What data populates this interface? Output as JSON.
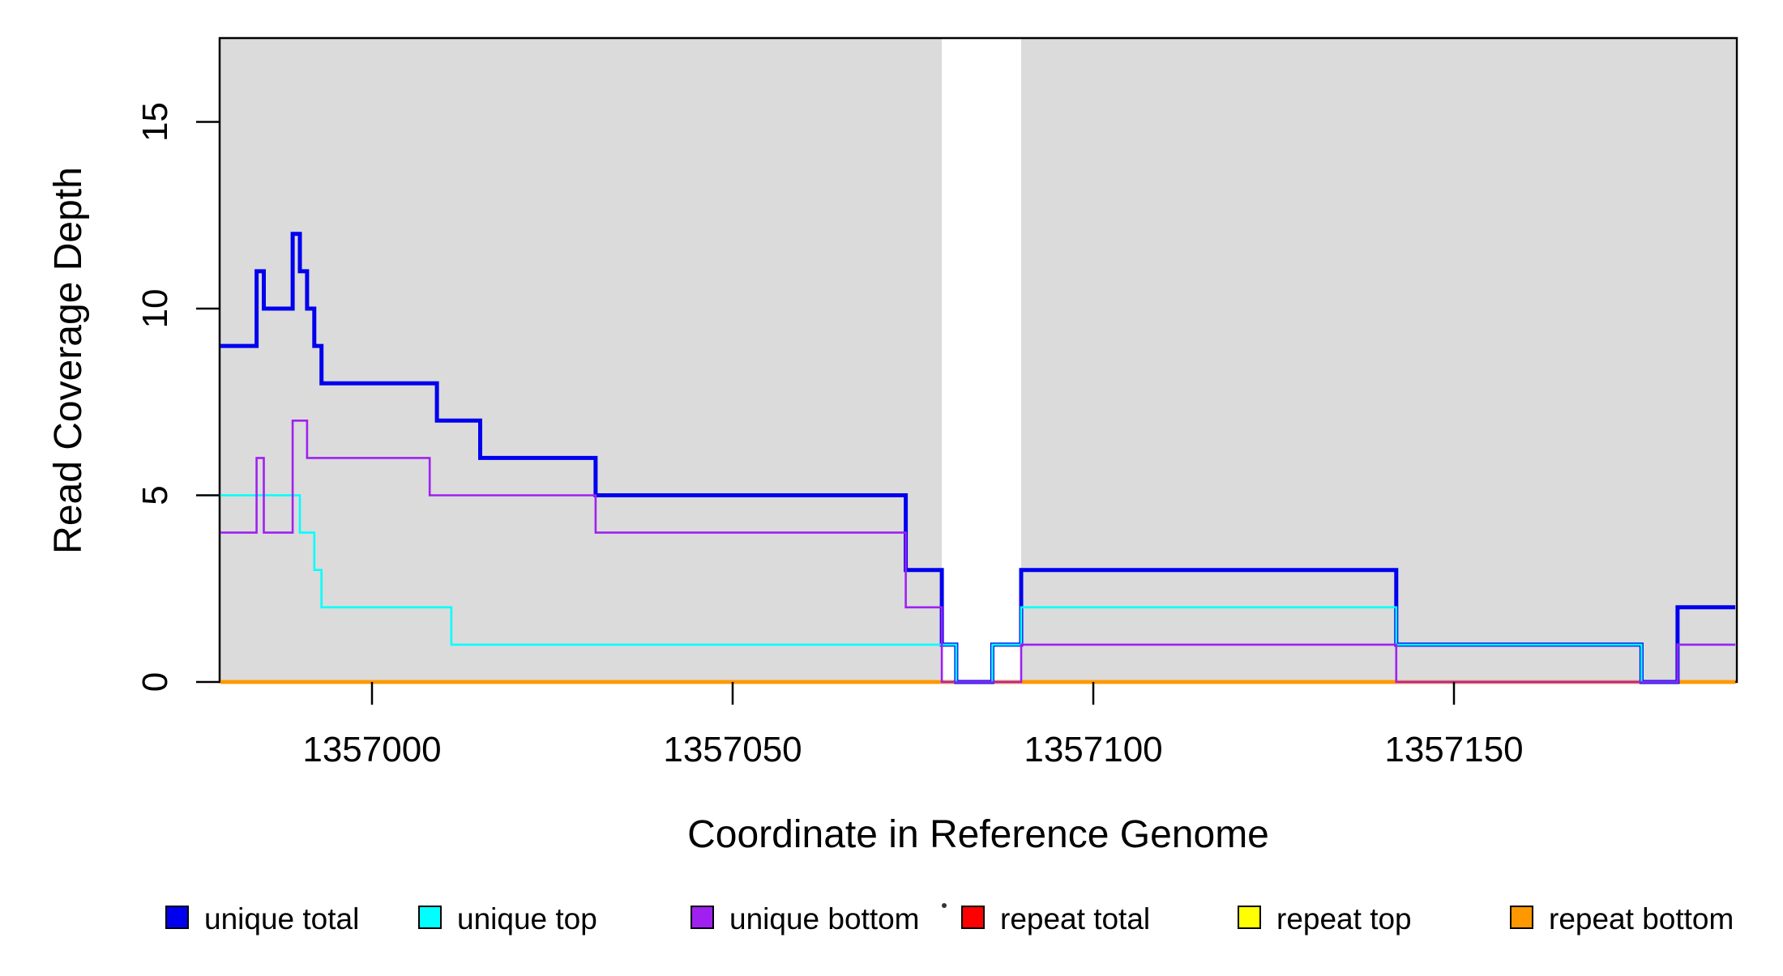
{
  "y_axis": {
    "label": "Read Coverage Depth",
    "ticks": [
      0,
      5,
      10,
      15
    ],
    "tick_labels": [
      "0",
      "5",
      "10",
      "15"
    ],
    "range": [
      0,
      17.2
    ]
  },
  "x_axis": {
    "label": "Coordinate in Reference Genome",
    "ticks": [
      1357000,
      1357050,
      1357100,
      1357150
    ],
    "tick_labels": [
      "1357000",
      "1357050",
      "1357100",
      "1357150"
    ],
    "range": [
      1356979,
      1357189
    ]
  },
  "legend": {
    "items": [
      {
        "label": "unique total",
        "color": "#0000EE"
      },
      {
        "label": "unique top",
        "color": "#00FFFF"
      },
      {
        "label": "unique bottom",
        "color": "#A020F0"
      },
      {
        "label": "repeat total",
        "color": "#FF0000"
      },
      {
        "label": "repeat top",
        "color": "#FFFF00"
      },
      {
        "label": "repeat bottom",
        "color": "#FF9800"
      }
    ]
  },
  "chart_data": {
    "type": "step-line",
    "title": "",
    "xlabel": "Coordinate in Reference Genome",
    "ylabel": "Read Coverage Depth",
    "xlim": [
      1356979,
      1357189
    ],
    "ylim": [
      0,
      17.2
    ],
    "grid": false,
    "legend_position": "bottom",
    "plot_background": "#ffffff",
    "shaded_regions": [
      {
        "name": "mappable-region-left",
        "x0": 1356979,
        "x1": 1357079,
        "color": "#DBDBDB"
      },
      {
        "name": "mappable-region-right",
        "x0": 1357090,
        "x1": 1357189,
        "color": "#DBDBDB"
      }
    ],
    "gap_region": {
      "x0": 1357079,
      "x1": 1357090,
      "color": "#ffffff"
    },
    "series": [
      {
        "name": "repeat total",
        "color": "#FF0000",
        "width": 4.5,
        "steps": [
          [
            1356979,
            1357189,
            0
          ]
        ]
      },
      {
        "name": "repeat top",
        "color": "#FFFF00",
        "width": 4.5,
        "steps": [
          [
            1356979,
            1357189,
            0
          ]
        ]
      },
      {
        "name": "repeat bottom",
        "color": "#FF9800",
        "width": 4.5,
        "steps": [
          [
            1356979,
            1357189,
            0
          ]
        ]
      },
      {
        "name": "unique total",
        "color": "#0000EE",
        "width": 5,
        "steps": [
          [
            1356979,
            1356984,
            9
          ],
          [
            1356984,
            1356985,
            11
          ],
          [
            1356985,
            1356989,
            10
          ],
          [
            1356989,
            1356990,
            12
          ],
          [
            1356990,
            1356991,
            11
          ],
          [
            1356991,
            1356992,
            10
          ],
          [
            1356992,
            1356993,
            9
          ],
          [
            1356993,
            1357009,
            8
          ],
          [
            1357009,
            1357015,
            7
          ],
          [
            1357015,
            1357031,
            6
          ],
          [
            1357031,
            1357074,
            5
          ],
          [
            1357074,
            1357079,
            3
          ],
          [
            1357079,
            1357081,
            1
          ],
          [
            1357081,
            1357086,
            0
          ],
          [
            1357086,
            1357090,
            1
          ],
          [
            1357090,
            1357142,
            3
          ],
          [
            1357142,
            1357176,
            1
          ],
          [
            1357176,
            1357181,
            0
          ],
          [
            1357181,
            1357189,
            2
          ]
        ]
      },
      {
        "name": "unique top",
        "color": "#00FFFF",
        "width": 2.6,
        "steps": [
          [
            1356979,
            1356990,
            5
          ],
          [
            1356990,
            1356992,
            4
          ],
          [
            1356992,
            1356993,
            3
          ],
          [
            1356993,
            1357011,
            2
          ],
          [
            1357011,
            1357081,
            1
          ],
          [
            1357081,
            1357086,
            0
          ],
          [
            1357086,
            1357090,
            1
          ],
          [
            1357090,
            1357142,
            2
          ],
          [
            1357142,
            1357176,
            1
          ],
          [
            1357176,
            1357181,
            0
          ],
          [
            1357181,
            1357189,
            1
          ]
        ]
      },
      {
        "name": "unique bottom",
        "color": "#A020F0",
        "width": 2.6,
        "steps": [
          [
            1356979,
            1356984,
            4
          ],
          [
            1356984,
            1356985,
            6
          ],
          [
            1356985,
            1356989,
            4
          ],
          [
            1356989,
            1356991,
            7
          ],
          [
            1356991,
            1357008,
            6
          ],
          [
            1357008,
            1357031,
            5
          ],
          [
            1357031,
            1357074,
            4
          ],
          [
            1357074,
            1357079,
            2
          ],
          [
            1357079,
            1357090,
            0
          ],
          [
            1357090,
            1357142,
            1
          ],
          [
            1357142,
            1357181,
            0
          ],
          [
            1357181,
            1357189,
            1
          ]
        ]
      }
    ],
    "artifacts": [
      {
        "type": "dot",
        "x": 1165,
        "y": 1118
      }
    ]
  }
}
